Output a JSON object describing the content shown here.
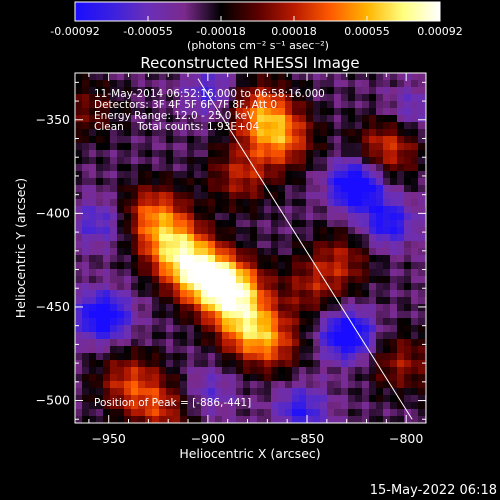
{
  "colorbar": {
    "colors": [
      "#1a0dff",
      "#3a20e0",
      "#6a2fb8",
      "#7a2a8c",
      "#000000",
      "#5a0000",
      "#b81a00",
      "#ff5a00",
      "#ffb400",
      "#ffff80",
      "#ffffff"
    ],
    "tick_labels": [
      "-0.00092",
      "-0.00055",
      "-0.00018",
      "0.00018",
      "0.00055",
      "0.00092"
    ],
    "units": "(photons cm⁻² s⁻¹ asec⁻²)"
  },
  "plot_title": "Reconstructed RHESSI Image",
  "info": {
    "time_range": "11-May-2014 06:52:16.000 to 06:58:16.000",
    "detectors": "Detectors: 3F 4F 5F 6F 7F 8F, Att 0",
    "energy": "Energy Range: 12.0 - 25.0 keV",
    "clean": "Clean    Total counts: 1.93E+04",
    "peak": "Position of Peak = [-886,-441]"
  },
  "footer_timestamp": "15-May-2022 06:18",
  "chart_data": {
    "type": "heatmap",
    "title": "Reconstructed RHESSI Image",
    "xlabel": "Heliocentric X (arcsec)",
    "ylabel": "Heliocentric Y (arcsec)",
    "xlim": [
      -967,
      -790
    ],
    "ylim": [
      -512,
      -325
    ],
    "xticks": [
      -950,
      -900,
      -850,
      -800
    ],
    "yticks": [
      -350,
      -400,
      -450,
      -500
    ],
    "color_range": [
      -0.00092,
      0.00092
    ],
    "peak_position": [
      -886,
      -441
    ],
    "limb_line": [
      [
        -905,
        -328
      ],
      [
        -797,
        -510
      ]
    ],
    "sources": [
      {
        "x": -890,
        "y": -441,
        "value": 0.00092
      },
      {
        "x": -905,
        "y": -432,
        "value": 0.0008
      },
      {
        "x": -918,
        "y": -418,
        "value": 0.00065
      },
      {
        "x": -928,
        "y": -400,
        "value": 0.0005
      },
      {
        "x": -882,
        "y": -460,
        "value": 0.00055
      },
      {
        "x": -870,
        "y": -470,
        "value": 0.0004
      },
      {
        "x": -865,
        "y": -360,
        "value": 0.00055
      },
      {
        "x": -875,
        "y": -345,
        "value": 0.0005
      },
      {
        "x": -885,
        "y": -380,
        "value": 0.00035
      },
      {
        "x": -835,
        "y": -425,
        "value": 0.0003
      },
      {
        "x": -850,
        "y": -440,
        "value": 0.00025
      },
      {
        "x": -812,
        "y": -365,
        "value": 0.00045
      },
      {
        "x": -940,
        "y": -490,
        "value": 0.0004
      },
      {
        "x": -925,
        "y": -505,
        "value": 0.00035
      },
      {
        "x": -805,
        "y": -480,
        "value": 0.0003
      },
      {
        "x": -960,
        "y": -345,
        "value": 0.0002
      },
      {
        "x": -828,
        "y": -385,
        "value": -0.0009
      },
      {
        "x": -812,
        "y": -405,
        "value": -0.0006
      },
      {
        "x": -832,
        "y": -465,
        "value": -0.00085
      },
      {
        "x": -953,
        "y": -455,
        "value": -0.0008
      },
      {
        "x": -955,
        "y": -405,
        "value": -0.0004
      },
      {
        "x": -855,
        "y": -505,
        "value": -0.0005
      },
      {
        "x": -900,
        "y": -335,
        "value": -0.0004
      },
      {
        "x": -800,
        "y": -345,
        "value": -0.0003
      },
      {
        "x": -900,
        "y": -495,
        "value": -0.0003
      }
    ]
  }
}
